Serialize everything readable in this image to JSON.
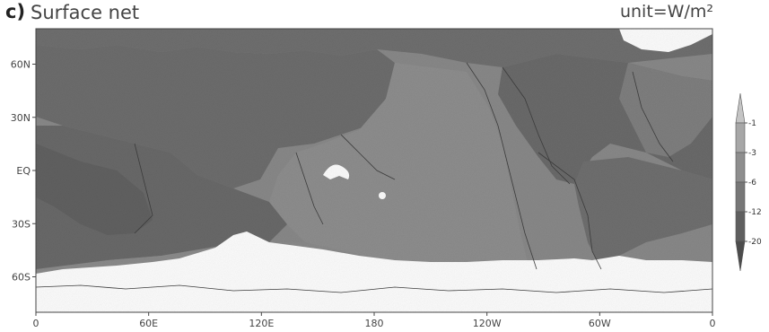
{
  "header": {
    "panel_label": "c)",
    "title": "Surface net",
    "unit": "unit=W/m²"
  },
  "map": {
    "projection": "cylindrical equidistant",
    "lon_range": [
      0,
      360
    ],
    "lat_range": [
      -80,
      80
    ],
    "lat_ticks": [
      {
        "value": 60,
        "label": "60N"
      },
      {
        "value": 30,
        "label": "30N"
      },
      {
        "value": 0,
        "label": "EQ"
      },
      {
        "value": -30,
        "label": "30S"
      },
      {
        "value": -60,
        "label": "60S"
      }
    ],
    "lon_ticks": [
      {
        "value": 0,
        "label": "0"
      },
      {
        "value": 60,
        "label": "60E"
      },
      {
        "value": 120,
        "label": "120E"
      },
      {
        "value": 180,
        "label": "180"
      },
      {
        "value": 240,
        "label": "120W"
      },
      {
        "value": 300,
        "label": "60W"
      },
      {
        "value": 360,
        "label": "0"
      }
    ]
  },
  "colorbar": {
    "levels": [
      "-1",
      "-3",
      "-6",
      "-12",
      "-20"
    ],
    "colors": [
      "#c4c4c4",
      "#a7a7a7",
      "#8e8e8e",
      "#777777",
      "#5f5f5f",
      "#4c4c4c"
    ]
  }
}
